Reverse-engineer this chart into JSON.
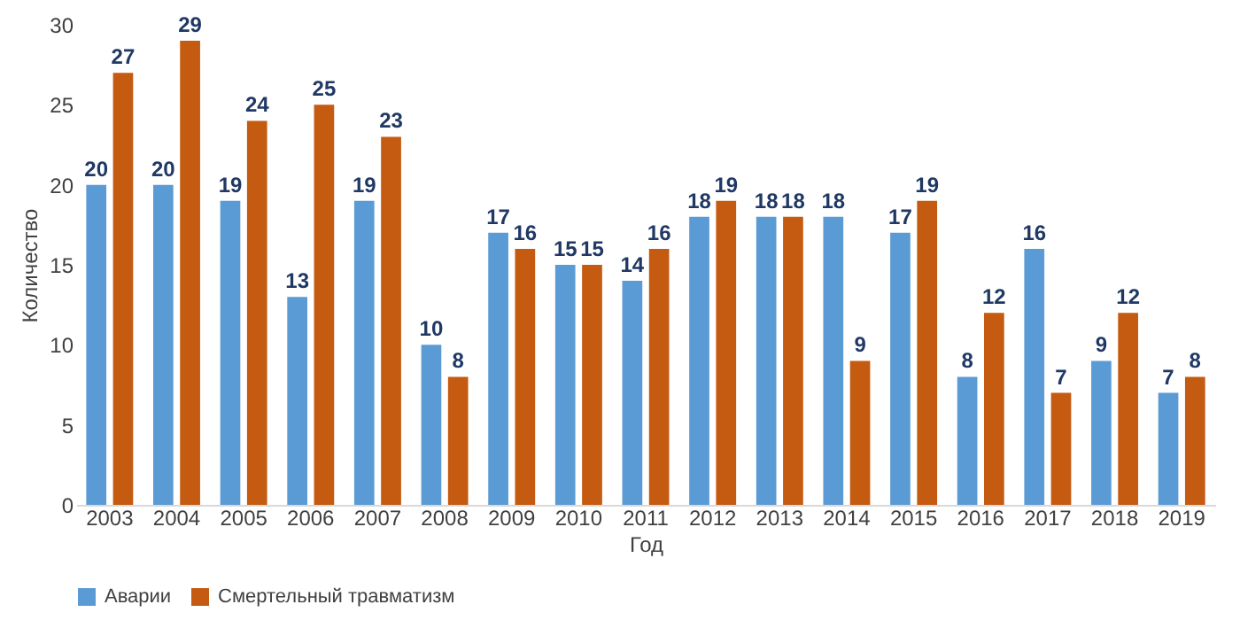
{
  "chart_data": {
    "type": "bar",
    "xlabel": "Год",
    "ylabel": "Количество",
    "categories": [
      "2003",
      "2004",
      "2005",
      "2006",
      "2007",
      "2008",
      "2009",
      "2010",
      "2011",
      "2012",
      "2013",
      "2014",
      "2015",
      "2016",
      "2017",
      "2018",
      "2019"
    ],
    "series": [
      {
        "name": "Аварии",
        "color": "#5b9bd5",
        "values": [
          20,
          20,
          19,
          13,
          19,
          10,
          17,
          15,
          14,
          18,
          18,
          18,
          17,
          8,
          16,
          9,
          7
        ]
      },
      {
        "name": "Смертельный травматизм",
        "color": "#c55a11",
        "values": [
          27,
          29,
          24,
          25,
          23,
          8,
          16,
          15,
          16,
          19,
          18,
          9,
          19,
          12,
          7,
          12,
          8
        ]
      }
    ],
    "ylim": [
      0,
      30
    ],
    "yticks": [
      0,
      5,
      10,
      15,
      20,
      25,
      30
    ],
    "grid": false,
    "legend": "bottom",
    "data_labels": true
  }
}
